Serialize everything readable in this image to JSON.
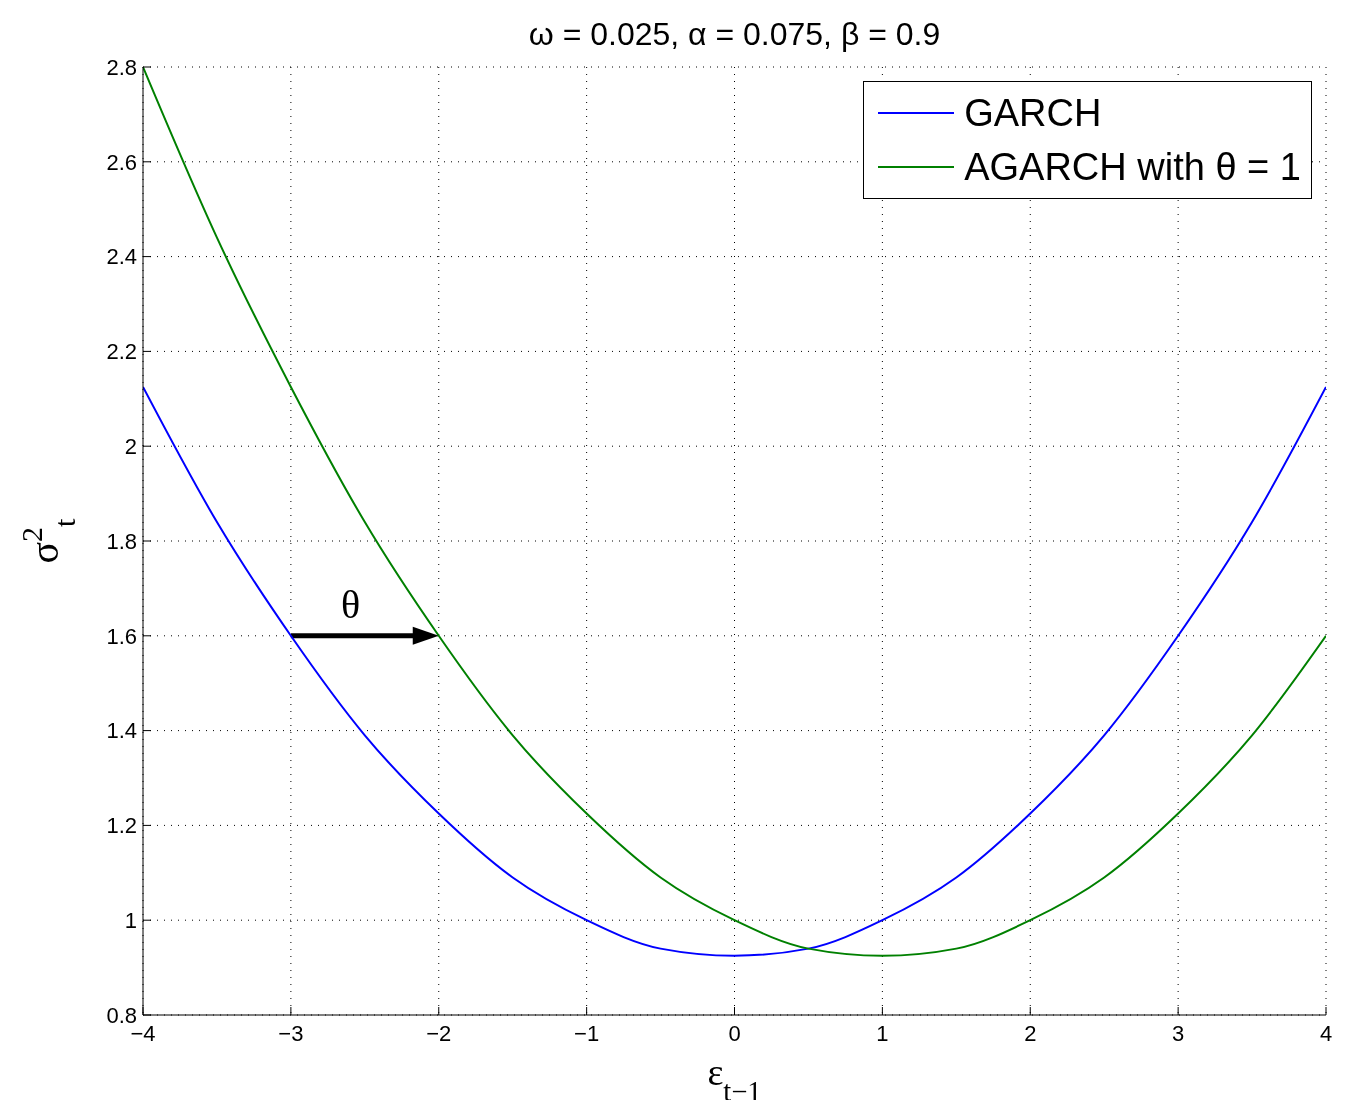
{
  "chart_data": {
    "type": "line",
    "title": "ω = 0.025, α = 0.075, β = 0.9",
    "xlabel": "ε$_{t−1}$",
    "ylabel": "σ$^{2}$$_{t}$",
    "x": [
      -4,
      -3.5,
      -3,
      -2.5,
      -2,
      -1.5,
      -1,
      -0.5,
      0,
      0.5,
      1,
      1.5,
      2,
      2.5,
      3,
      3.5,
      4
    ],
    "series": [
      {
        "name": "GARCH",
        "color": "#0000ff",
        "values": [
          2.125,
          1.84,
          1.6,
          1.39,
          1.225,
          1.09,
          1,
          0.94,
          0.925,
          0.94,
          1,
          1.09,
          1.225,
          1.39,
          1.6,
          1.84,
          2.125
        ]
      },
      {
        "name": "AGARCH with θ = 1",
        "color": "#008000",
        "values": [
          2.8,
          2.44,
          2.125,
          1.84,
          1.6,
          1.39,
          1.225,
          1.09,
          1,
          0.94,
          0.925,
          0.94,
          1,
          1.09,
          1.225,
          1.39,
          1.6
        ]
      }
    ],
    "xlim": [
      -4,
      4
    ],
    "xticks": [
      {
        "value": -4,
        "label": "−4"
      },
      {
        "value": -3,
        "label": "−3"
      },
      {
        "value": -2,
        "label": "−2"
      },
      {
        "value": -1,
        "label": "−1"
      },
      0,
      1,
      2,
      3,
      4
    ],
    "ylim": [
      0.8,
      2.8
    ],
    "yticks": [
      0.8,
      1,
      1.2,
      1.4,
      1.6,
      1.8,
      2,
      2.2,
      2.4,
      2.6,
      2.8
    ],
    "annotations": [
      {
        "text": "θ",
        "x": -3,
        "y": 1.6
      }
    ],
    "grid": true,
    "legend": "top right",
    "marker": "none",
    "line_style": "solid"
  }
}
